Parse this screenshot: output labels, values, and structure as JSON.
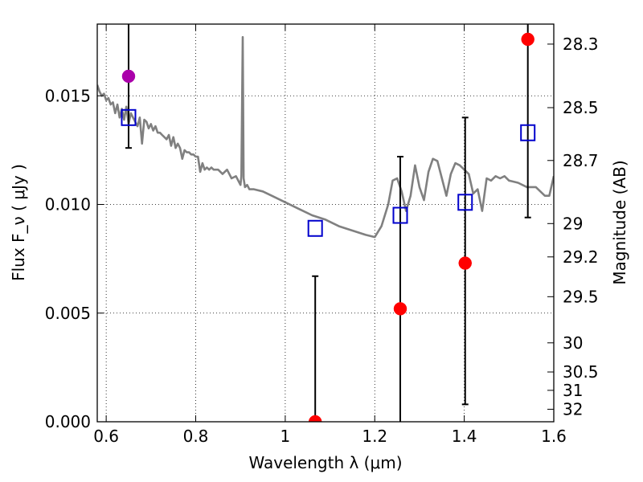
{
  "chart_data": {
    "type": "scatter",
    "xlabel": "Wavelength  λ (μm)",
    "ylabel": "Flux  F_ν  ( μJy )",
    "y2label": "Magnitude (AB)",
    "xlim": [
      0.58,
      1.6
    ],
    "ylim": [
      0.0,
      0.0183
    ],
    "grid": true,
    "x_ticks": [
      0.6,
      0.8,
      1.0,
      1.2,
      1.4,
      1.6
    ],
    "x_tick_labels": [
      "0.6",
      "0.8",
      "1",
      "1.2",
      "1.4",
      "1.6"
    ],
    "y_ticks": [
      0.0,
      0.005,
      0.01,
      0.015
    ],
    "y_tick_labels": [
      "0.000",
      "0.005",
      "0.010",
      "0.015"
    ],
    "mag_ticks": [
      28.3,
      28.5,
      28.7,
      29,
      29.2,
      29.5,
      30,
      30.5,
      31,
      32
    ],
    "mag_tick_labels": [
      "28.3",
      "28.5",
      "28.7",
      "29",
      "29.2",
      "29.5",
      "30",
      "30.5",
      "31",
      "32"
    ],
    "series": [
      {
        "name": "template_spectrum",
        "kind": "line",
        "color": "#808080",
        "x": [
          0.58,
          0.585,
          0.59,
          0.595,
          0.6,
          0.605,
          0.61,
          0.615,
          0.62,
          0.625,
          0.63,
          0.635,
          0.64,
          0.645,
          0.65,
          0.655,
          0.66,
          0.665,
          0.67,
          0.675,
          0.68,
          0.685,
          0.69,
          0.695,
          0.7,
          0.705,
          0.71,
          0.715,
          0.72,
          0.725,
          0.73,
          0.735,
          0.74,
          0.745,
          0.75,
          0.755,
          0.76,
          0.765,
          0.77,
          0.775,
          0.78,
          0.785,
          0.79,
          0.795,
          0.8,
          0.805,
          0.81,
          0.815,
          0.82,
          0.825,
          0.83,
          0.835,
          0.84,
          0.85,
          0.86,
          0.87,
          0.88,
          0.89,
          0.9,
          0.902,
          0.905,
          0.907,
          0.91,
          0.915,
          0.92,
          0.93,
          0.95,
          0.97,
          1.0,
          1.03,
          1.06,
          1.09,
          1.12,
          1.15,
          1.18,
          1.2,
          1.215,
          1.23,
          1.24,
          1.25,
          1.26,
          1.27,
          1.28,
          1.29,
          1.3,
          1.31,
          1.32,
          1.33,
          1.34,
          1.35,
          1.36,
          1.37,
          1.38,
          1.39,
          1.4,
          1.41,
          1.42,
          1.43,
          1.44,
          1.45,
          1.46,
          1.47,
          1.48,
          1.49,
          1.5,
          1.52,
          1.54,
          1.56,
          1.58,
          1.59,
          1.6
        ],
        "y": [
          0.0155,
          0.0152,
          0.015,
          0.0151,
          0.0148,
          0.0149,
          0.0146,
          0.0147,
          0.0142,
          0.0146,
          0.014,
          0.0144,
          0.0139,
          0.0145,
          0.0137,
          0.0142,
          0.014,
          0.0138,
          0.0136,
          0.014,
          0.0128,
          0.0139,
          0.0138,
          0.0135,
          0.0137,
          0.0134,
          0.0136,
          0.0133,
          0.0133,
          0.0132,
          0.0131,
          0.013,
          0.0132,
          0.0127,
          0.0131,
          0.0126,
          0.0128,
          0.0126,
          0.0121,
          0.0125,
          0.0124,
          0.0124,
          0.0123,
          0.0123,
          0.0122,
          0.0122,
          0.0115,
          0.0119,
          0.0116,
          0.0117,
          0.0116,
          0.0117,
          0.0116,
          0.0116,
          0.0114,
          0.0116,
          0.0112,
          0.0113,
          0.0109,
          0.0113,
          0.0177,
          0.0112,
          0.0108,
          0.0109,
          0.0107,
          0.0107,
          0.0106,
          0.0104,
          0.0101,
          0.0098,
          0.0095,
          0.0093,
          0.009,
          0.0088,
          0.0086,
          0.0085,
          0.009,
          0.01,
          0.0111,
          0.0112,
          0.0106,
          0.0097,
          0.0104,
          0.0118,
          0.0108,
          0.0102,
          0.0115,
          0.0121,
          0.012,
          0.0112,
          0.0104,
          0.0114,
          0.0119,
          0.0118,
          0.0116,
          0.0114,
          0.0105,
          0.0107,
          0.0097,
          0.0112,
          0.0111,
          0.0113,
          0.0112,
          0.0113,
          0.0111,
          0.011,
          0.0108,
          0.0108,
          0.0104,
          0.0104,
          0.0113
        ]
      },
      {
        "name": "model_photometry",
        "kind": "open_square",
        "color": "#0000cc",
        "x": [
          0.65,
          1.067,
          1.257,
          1.402,
          1.542
        ],
        "y": [
          0.014,
          0.0089,
          0.0095,
          0.0101,
          0.0133
        ]
      },
      {
        "name": "observed_flux_errorbars",
        "kind": "errorbar",
        "color": "#000000",
        "x": [
          0.65,
          1.067,
          1.257,
          1.402,
          1.542
        ],
        "ylow": [
          0.0126,
          0.0,
          0.0,
          0.0008,
          0.0094
        ],
        "yhigh": [
          0.0183,
          0.0067,
          0.0122,
          0.014,
          0.0183
        ]
      },
      {
        "name": "observed_flux",
        "kind": "filled_circle",
        "color": "#ff0000",
        "x": [
          1.067,
          1.257,
          1.402,
          1.542
        ],
        "y": [
          0.0,
          0.0052,
          0.0073,
          0.0176
        ]
      },
      {
        "name": "optical_point",
        "kind": "filled_circle",
        "color": "#aa00aa",
        "x": [
          0.65
        ],
        "y": [
          0.0159
        ]
      }
    ]
  }
}
